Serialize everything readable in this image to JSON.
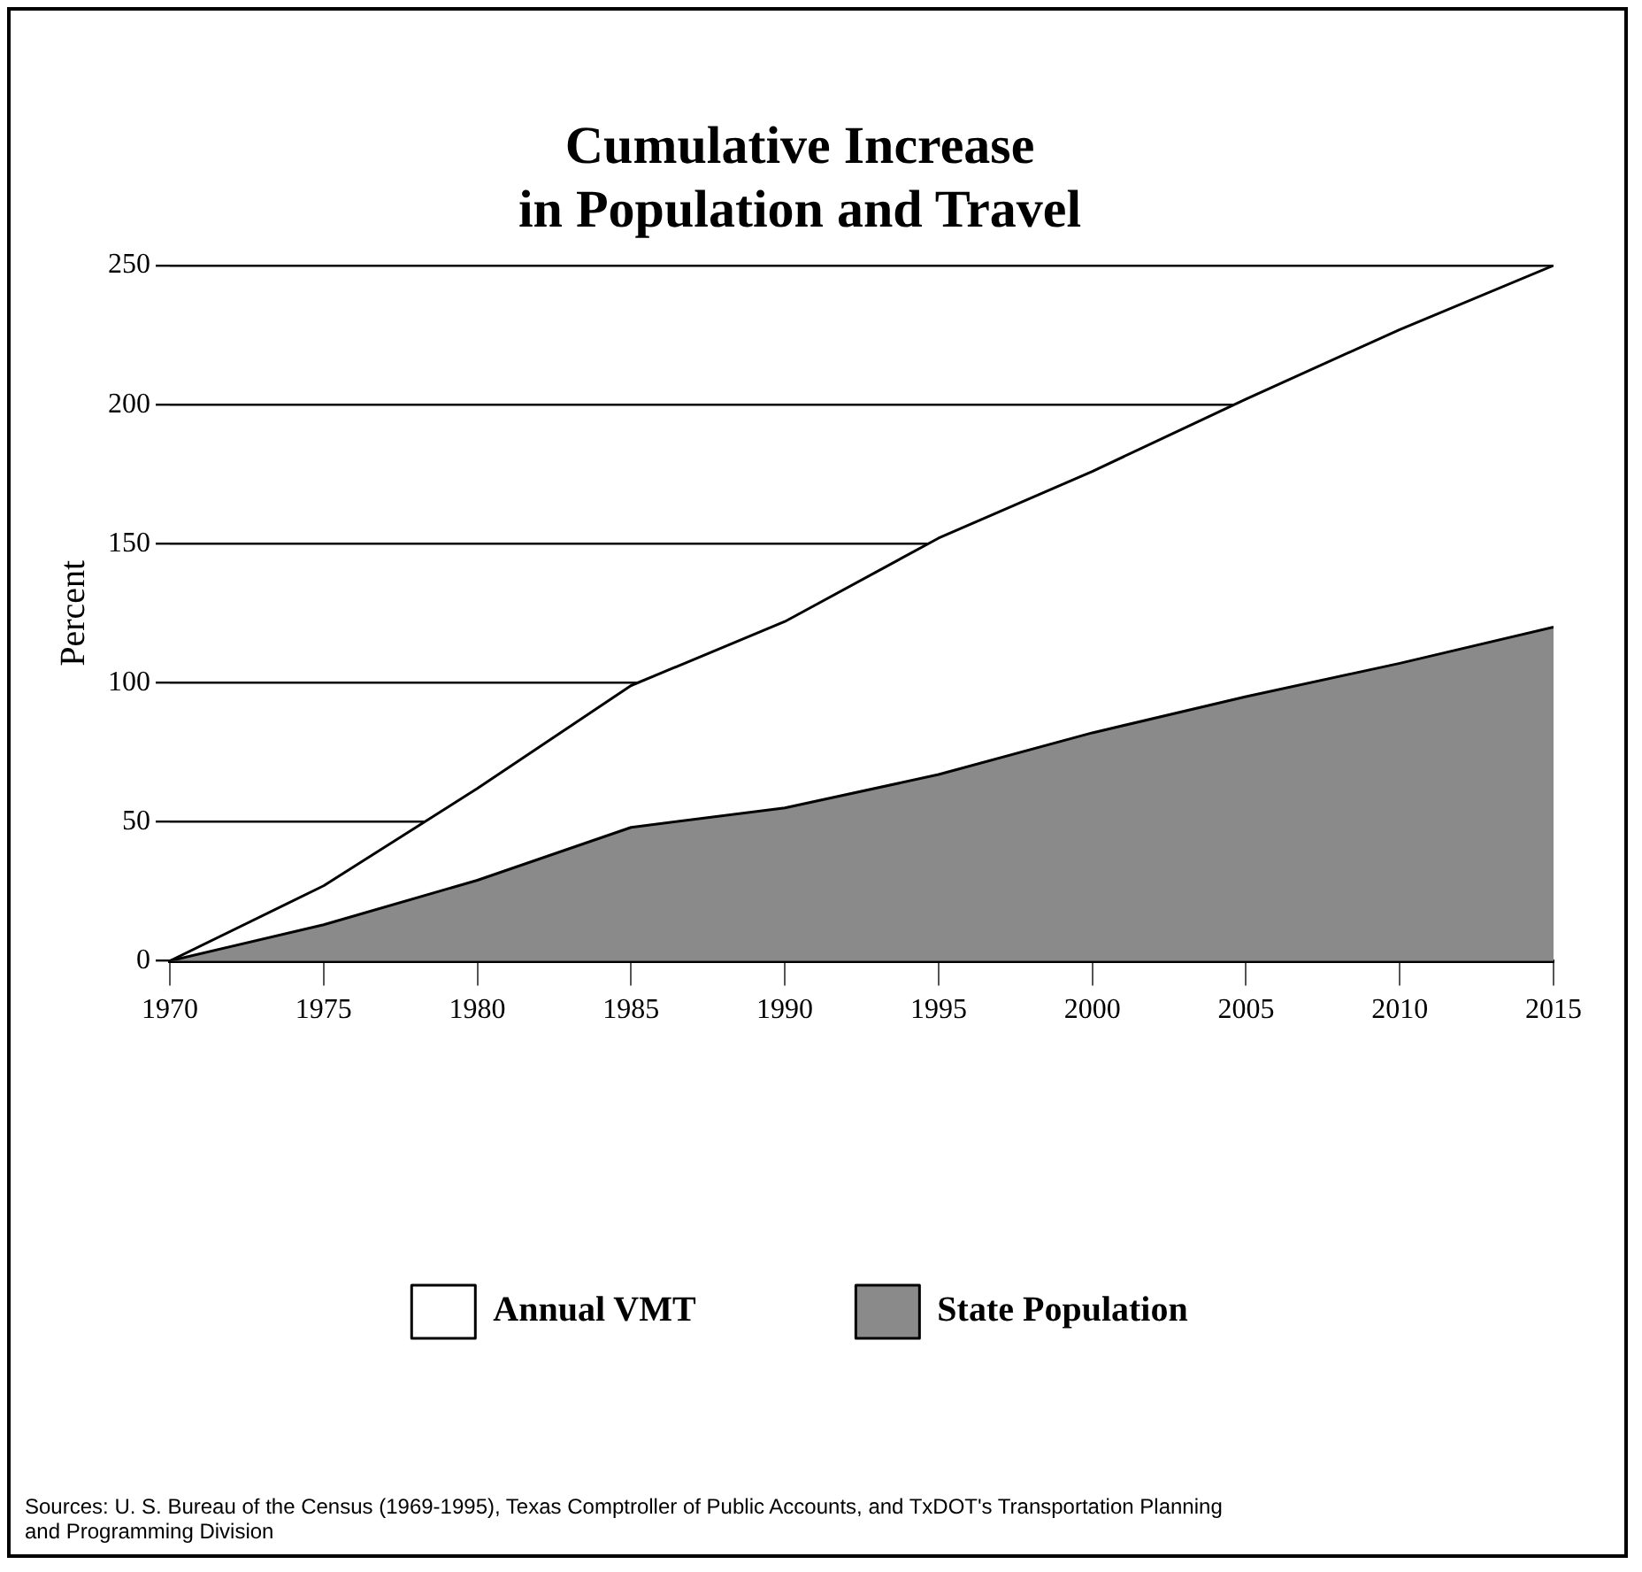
{
  "chart_data": {
    "type": "area",
    "title": [
      "Cumulative Increase",
      "in Population and Travel"
    ],
    "ylabel": "Percent",
    "x": [
      1970,
      1975,
      1980,
      1985,
      1990,
      1995,
      2000,
      2005,
      2010,
      2015
    ],
    "xlim": [
      1970,
      2015
    ],
    "xticks": [
      1970,
      1975,
      1980,
      1985,
      1990,
      1995,
      2000,
      2005,
      2010,
      2015
    ],
    "ylim": [
      0,
      250
    ],
    "yticks": [
      0,
      50,
      100,
      150,
      200,
      250
    ],
    "grid": "y",
    "legend": "bottom",
    "series": [
      {
        "name": "Annual VMT",
        "color": "#ffffff",
        "values": [
          0,
          27,
          62,
          99,
          122,
          152,
          176,
          202,
          227,
          250
        ]
      },
      {
        "name": "State Population",
        "color": "#8a8a8a",
        "values": [
          0,
          13,
          29,
          48,
          55,
          67,
          82,
          95,
          107,
          120
        ]
      }
    ],
    "annotations": [
      "Sources: U. S. Bureau of the Census (1969-1995), Texas Comptroller of Public Accounts, and TxDOT's Transportation Planning and Programming Division"
    ]
  }
}
